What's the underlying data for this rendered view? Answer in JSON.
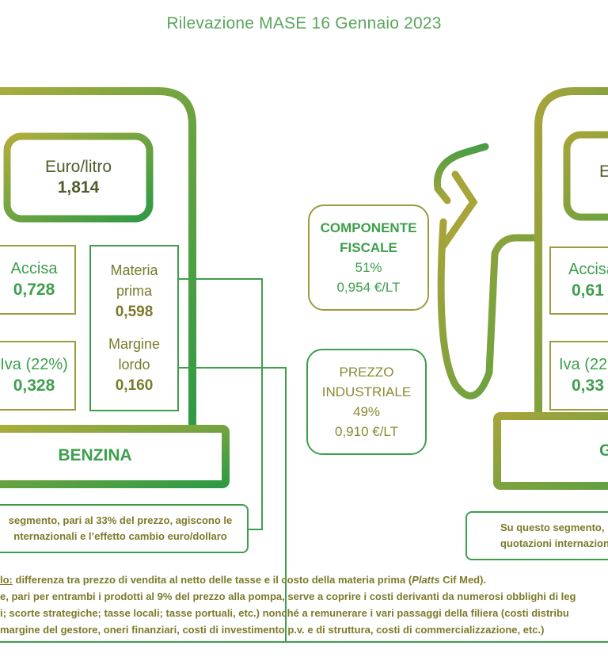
{
  "title": "Rilevazione MASE 16 Gennaio 2023",
  "benzina": {
    "price_label": "Euro/litro",
    "price_value": "1,814",
    "accisa_label": "Accisa",
    "accisa_value": "0,728",
    "iva_label": "Iva (22%)",
    "iva_value": "0,328",
    "materia_label_1": "Materia",
    "materia_label_2": "prima",
    "materia_value": "0,598",
    "margine_label_1": "Margine",
    "margine_label_2": "lordo",
    "margine_value": "0,160",
    "name": "BENZINA",
    "note_line_1": "segmento, pari al 33% del prezzo, agiscono le",
    "note_line_2": "nternazionali e l’effetto cambio euro/dollaro"
  },
  "center": {
    "fiscale_line_1": "COMPONENTE",
    "fiscale_line_2": "FISCALE",
    "fiscale_pct": "51%",
    "fiscale_value": "0,954 €/LT",
    "industriale_line_1": "PREZZO",
    "industriale_line_2": "INDUSTRIALE",
    "industriale_pct": "49%",
    "industriale_value": "0,910 €/LT"
  },
  "gasolio": {
    "price_label": "E",
    "accisa_label": "Accisa",
    "accisa_value": "0,61",
    "iva_label": "Iva (22",
    "iva_value": "0,33",
    "name": "G",
    "note_line_1": "Su questo segmento, p",
    "note_line_2": "quotazioni internazion"
  },
  "footnote": {
    "line_1_term": "lo:",
    "line_1_text": " differenza tra prezzo di vendita al netto delle tasse e il costo della materia prima (",
    "line_1_italic": "Platts",
    "line_1_end": " Cif Med).",
    "line_2": "e, pari  per entrambi i prodotti al 9% del prezzo alla pompa, serve a coprire i costi derivanti da numerosi obblighi di leg",
    "line_3": "i; scorte strategiche; tasse locali; tasse portuali, etc.) nonché a remunerare i vari passaggi della filiera (costi distribu",
    "line_4": "margine del gestore, oneri finanziari, costi di investimento p.v. e di struttura, costi di commercializzazione, etc.)"
  },
  "colors": {
    "green": "#3d9f4c",
    "olive": "#9c9b3f",
    "title": "#5aa55c"
  },
  "icons": {
    "left_pump": "fuel-pump-outline-icon",
    "nozzle": "fuel-nozzle-icon",
    "right_pump": "fuel-pump-outline-icon"
  }
}
